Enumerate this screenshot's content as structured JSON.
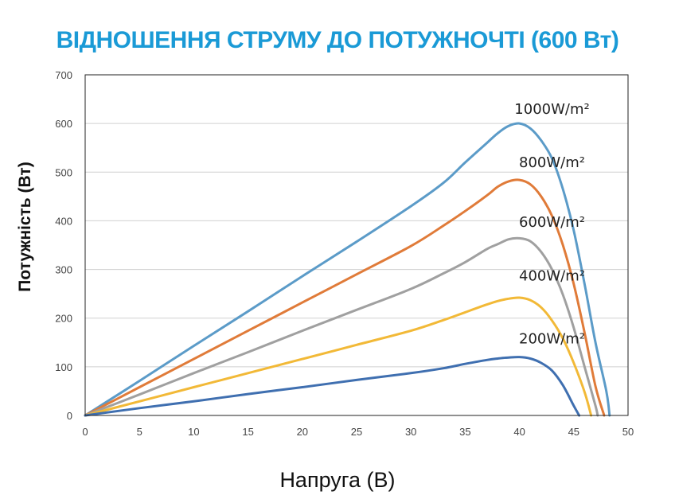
{
  "chart_data": {
    "type": "line",
    "title": "ВІДНОШЕННЯ  СТРУМУ ДО ПОТУЖНОЧТІ (600 Вт)",
    "xlabel": "Напруга (В)",
    "ylabel": "Потужність (Вт)",
    "xlim": [
      0,
      50
    ],
    "ylim": [
      0,
      700
    ],
    "x_ticks": [
      "0",
      "5",
      "10",
      "15",
      "20",
      "25",
      "30",
      "35",
      "40",
      "45",
      "50"
    ],
    "y_ticks": [
      "0",
      "100",
      "200",
      "300",
      "400",
      "500",
      "600",
      "700"
    ],
    "grid": "horizontal",
    "series": [
      {
        "name": "1000W/m²",
        "color": "#5b9bc8",
        "points": [
          [
            0,
            0
          ],
          [
            5,
            71
          ],
          [
            10,
            143
          ],
          [
            15,
            214
          ],
          [
            20,
            286
          ],
          [
            25,
            357
          ],
          [
            30,
            430
          ],
          [
            33,
            478
          ],
          [
            35,
            520
          ],
          [
            37,
            560
          ],
          [
            38,
            580
          ],
          [
            39,
            595
          ],
          [
            40,
            600
          ],
          [
            41,
            590
          ],
          [
            42,
            565
          ],
          [
            43,
            528
          ],
          [
            44,
            465
          ],
          [
            45,
            380
          ],
          [
            46,
            270
          ],
          [
            47,
            150
          ],
          [
            48,
            50
          ],
          [
            48.3,
            0
          ]
        ]
      },
      {
        "name": "800W/m²",
        "color": "#e07b39",
        "points": [
          [
            0,
            0
          ],
          [
            5,
            58
          ],
          [
            10,
            116
          ],
          [
            15,
            174
          ],
          [
            20,
            232
          ],
          [
            25,
            290
          ],
          [
            30,
            348
          ],
          [
            33,
            390
          ],
          [
            35,
            420
          ],
          [
            37,
            452
          ],
          [
            38,
            470
          ],
          [
            39,
            481
          ],
          [
            40,
            484
          ],
          [
            41,
            475
          ],
          [
            42,
            450
          ],
          [
            43,
            410
          ],
          [
            44,
            350
          ],
          [
            45,
            270
          ],
          [
            46,
            170
          ],
          [
            47,
            60
          ],
          [
            47.8,
            0
          ]
        ]
      },
      {
        "name": "600W/m²",
        "color": "#a0a0a0",
        "points": [
          [
            0,
            0
          ],
          [
            5,
            43
          ],
          [
            10,
            87
          ],
          [
            15,
            130
          ],
          [
            20,
            174
          ],
          [
            25,
            217
          ],
          [
            30,
            260
          ],
          [
            33,
            292
          ],
          [
            35,
            315
          ],
          [
            37,
            342
          ],
          [
            38,
            352
          ],
          [
            39,
            362
          ],
          [
            40,
            364
          ],
          [
            41,
            358
          ],
          [
            42,
            336
          ],
          [
            43,
            300
          ],
          [
            44,
            248
          ],
          [
            45,
            180
          ],
          [
            46,
            100
          ],
          [
            47,
            20
          ],
          [
            47.2,
            0
          ]
        ]
      },
      {
        "name": "400W/m²",
        "color": "#f2b937",
        "points": [
          [
            0,
            0
          ],
          [
            5,
            29
          ],
          [
            10,
            58
          ],
          [
            15,
            87
          ],
          [
            20,
            116
          ],
          [
            25,
            145
          ],
          [
            30,
            174
          ],
          [
            33,
            196
          ],
          [
            35,
            212
          ],
          [
            37,
            228
          ],
          [
            38,
            235
          ],
          [
            39,
            240
          ],
          [
            40,
            242
          ],
          [
            41,
            237
          ],
          [
            42,
            222
          ],
          [
            43,
            195
          ],
          [
            44,
            158
          ],
          [
            45,
            108
          ],
          [
            46,
            48
          ],
          [
            46.6,
            0
          ]
        ]
      },
      {
        "name": "200W/m²",
        "color": "#3f6fb0",
        "points": [
          [
            0,
            0
          ],
          [
            5,
            15
          ],
          [
            10,
            29
          ],
          [
            15,
            44
          ],
          [
            20,
            58
          ],
          [
            25,
            73
          ],
          [
            30,
            87
          ],
          [
            33,
            97
          ],
          [
            35,
            106
          ],
          [
            37,
            114
          ],
          [
            38,
            117
          ],
          [
            39,
            119
          ],
          [
            40,
            120
          ],
          [
            41,
            117
          ],
          [
            42,
            108
          ],
          [
            43,
            92
          ],
          [
            44,
            62
          ],
          [
            45,
            20
          ],
          [
            45.5,
            0
          ]
        ]
      }
    ],
    "series_label_anchors": [
      {
        "x": 43,
        "y": 620
      },
      {
        "x": 43,
        "y": 510
      },
      {
        "x": 43,
        "y": 388
      },
      {
        "x": 43,
        "y": 277
      },
      {
        "x": 43,
        "y": 148
      }
    ]
  }
}
